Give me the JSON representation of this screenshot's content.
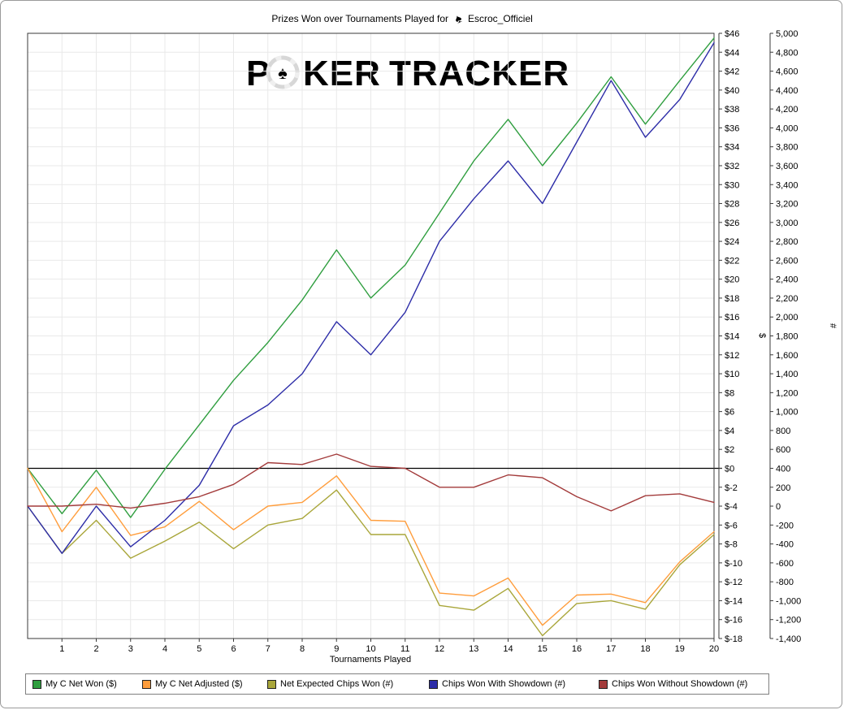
{
  "window": {
    "title_prefix": "Prizes Won over Tournaments Played for",
    "player_icon_glyph": "♠",
    "player_name": "Escroc_Officiel"
  },
  "watermark": {
    "part1": "P",
    "part2": "KER",
    "part3": "TRACKER",
    "chip_glyph": "♠"
  },
  "x_axis": {
    "title": "Tournaments Played",
    "tick_labels": [
      "1",
      "2",
      "3",
      "4",
      "5",
      "6",
      "7",
      "8",
      "9",
      "10",
      "11",
      "12",
      "13",
      "14",
      "15",
      "16",
      "17",
      "18",
      "19",
      "20"
    ]
  },
  "dollar_axis": {
    "unit_label": "$",
    "tick_labels": [
      "$46",
      "$44",
      "$42",
      "$40",
      "$38",
      "$36",
      "$34",
      "$32",
      "$30",
      "$28",
      "$26",
      "$24",
      "$22",
      "$20",
      "$18",
      "$16",
      "$14",
      "$12",
      "$10",
      "$8",
      "$6",
      "$4",
      "$2",
      "$0",
      "$-2",
      "$-4",
      "$-6",
      "$-8",
      "$-10",
      "$-12",
      "$-14",
      "$-16",
      "$-18"
    ]
  },
  "count_axis": {
    "unit_label": "#",
    "tick_labels": [
      "5,000",
      "4,800",
      "4,600",
      "4,400",
      "4,200",
      "4,000",
      "3,800",
      "3,600",
      "3,400",
      "3,200",
      "3,000",
      "2,800",
      "2,600",
      "2,400",
      "2,200",
      "2,000",
      "1,800",
      "1,600",
      "1,400",
      "1,200",
      "1,000",
      "800",
      "600",
      "400",
      "200",
      "0",
      "-200",
      "-400",
      "-600",
      "-800",
      "-1,000",
      "-1,200",
      "-1,400"
    ]
  },
  "chart_data": {
    "type": "line",
    "title": "Prizes Won over Tournaments Played for Escroc_Officiel",
    "xlabel": "Tournaments Played",
    "grid": true,
    "legend_position": "bottom",
    "x_range": [
      0,
      20
    ],
    "dollar_axis_range": [
      -18,
      46
    ],
    "dollar_axis_step": 2,
    "count_axis_range": [
      -1400,
      5000
    ],
    "count_axis_step": 200,
    "x": [
      0,
      1,
      2,
      3,
      4,
      5,
      6,
      7,
      8,
      9,
      10,
      11,
      12,
      13,
      14,
      15,
      16,
      17,
      18,
      19,
      20
    ],
    "series": [
      {
        "name": "My C Net Won ($)",
        "axis": "dollar",
        "color": "#2f9e3f",
        "values": [
          0,
          -4.8,
          -0.2,
          -5.2,
          -0.1,
          4.6,
          9.3,
          13.3,
          17.8,
          23.1,
          18,
          21.5,
          27,
          32.5,
          36.9,
          32,
          36.5,
          41.4,
          36.4,
          41,
          45.5
        ]
      },
      {
        "name": "My C Net Adjusted ($)",
        "axis": "dollar",
        "color": "#ff9d3c",
        "values": [
          0,
          -6.7,
          -2,
          -7.1,
          -6.2,
          -3.5,
          -6.5,
          -4,
          -3.6,
          -0.8,
          -5.5,
          -5.6,
          -13.2,
          -13.5,
          -11.6,
          -16.6,
          -13.4,
          -13.3,
          -14.2,
          -9.9,
          -6.7
        ]
      },
      {
        "name": "Net Expected Chips Won (#)",
        "axis": "count",
        "color": "#a9a63a",
        "values": [
          0,
          -500,
          -150,
          -550,
          -370,
          -170,
          -450,
          -200,
          -130,
          170,
          -300,
          -300,
          -1050,
          -1100,
          -870,
          -1370,
          -1030,
          -1000,
          -1090,
          -620,
          -300
        ]
      },
      {
        "name": "Chips Won With Showdown (#)",
        "axis": "count",
        "color": "#2d2da8",
        "values": [
          0,
          -500,
          0,
          -430,
          -150,
          220,
          850,
          1070,
          1400,
          1950,
          1600,
          2050,
          2800,
          3250,
          3650,
          3200,
          3850,
          4500,
          3900,
          4300,
          4900
        ]
      },
      {
        "name": "Chips Won Without Showdown (#)",
        "axis": "count",
        "color": "#a33b3b",
        "values": [
          0,
          0,
          20,
          -20,
          30,
          100,
          230,
          460,
          440,
          550,
          420,
          400,
          200,
          200,
          330,
          300,
          100,
          -50,
          110,
          130,
          40
        ]
      }
    ]
  },
  "colors": {
    "grid": "#e9e9e9",
    "zero_line": "#000000",
    "plot_border": "#3a3a3a",
    "axis_line": "#3a3a3a",
    "outer_border": "#9a9a9a",
    "watermark_dark": "#d7d7d7",
    "watermark_light": "#ececec",
    "title_icon_pink": "#dc9db4"
  }
}
